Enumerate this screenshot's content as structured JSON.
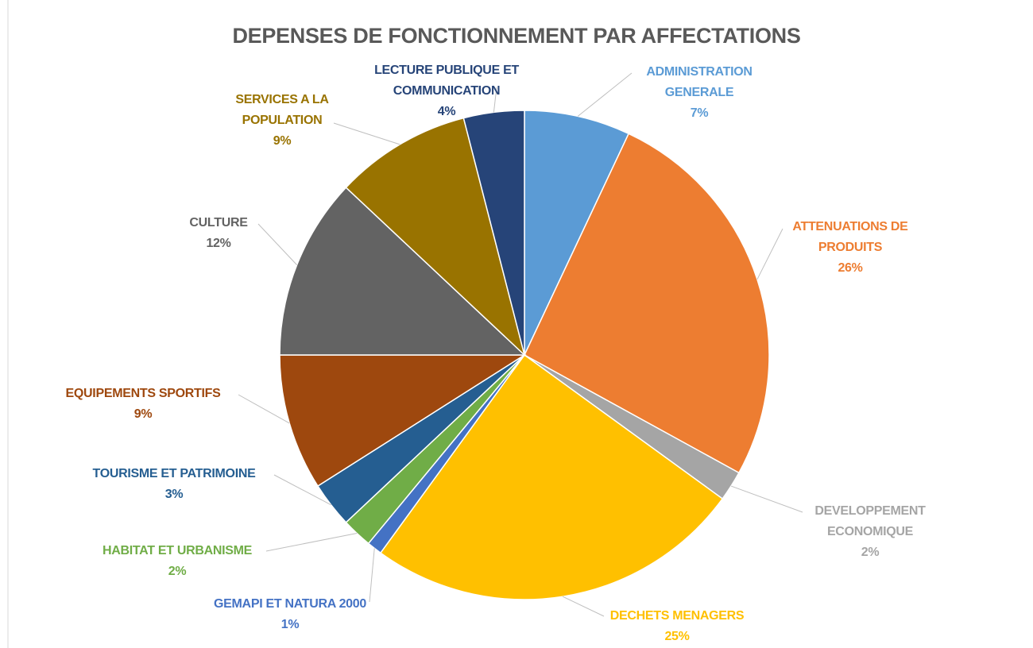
{
  "chart_data": {
    "type": "pie",
    "title": "DEPENSES DE FONCTIONNEMENT PAR AFFECTATIONS",
    "categories": [
      "ADMINISTRATION GENERALE",
      "ATTENUATIONS DE PRODUITS",
      "DEVELOPPEMENT ECONOMIQUE",
      "DECHETS MENAGERS",
      "GEMAPI ET NATURA 2000",
      "HABITAT ET URBANISME",
      "TOURISME ET PATRIMOINE",
      "EQUIPEMENTS SPORTIFS",
      "CULTURE",
      "SERVICES A LA POPULATION",
      "LECTURE PUBLIQUE ET COMMUNICATION"
    ],
    "values": [
      7,
      26,
      2,
      25,
      1,
      2,
      3,
      9,
      12,
      9,
      4
    ],
    "value_labels": [
      "7%",
      "26%",
      "2%",
      "25%",
      "1%",
      "2%",
      "3%",
      "9%",
      "12%",
      "9%",
      "4%"
    ],
    "colors": [
      "#5B9BD5",
      "#ED7D31",
      "#A5A5A5",
      "#FFC000",
      "#4472C4",
      "#70AD47",
      "#255E91",
      "#9E480E",
      "#636363",
      "#997300",
      "#264478"
    ]
  }
}
